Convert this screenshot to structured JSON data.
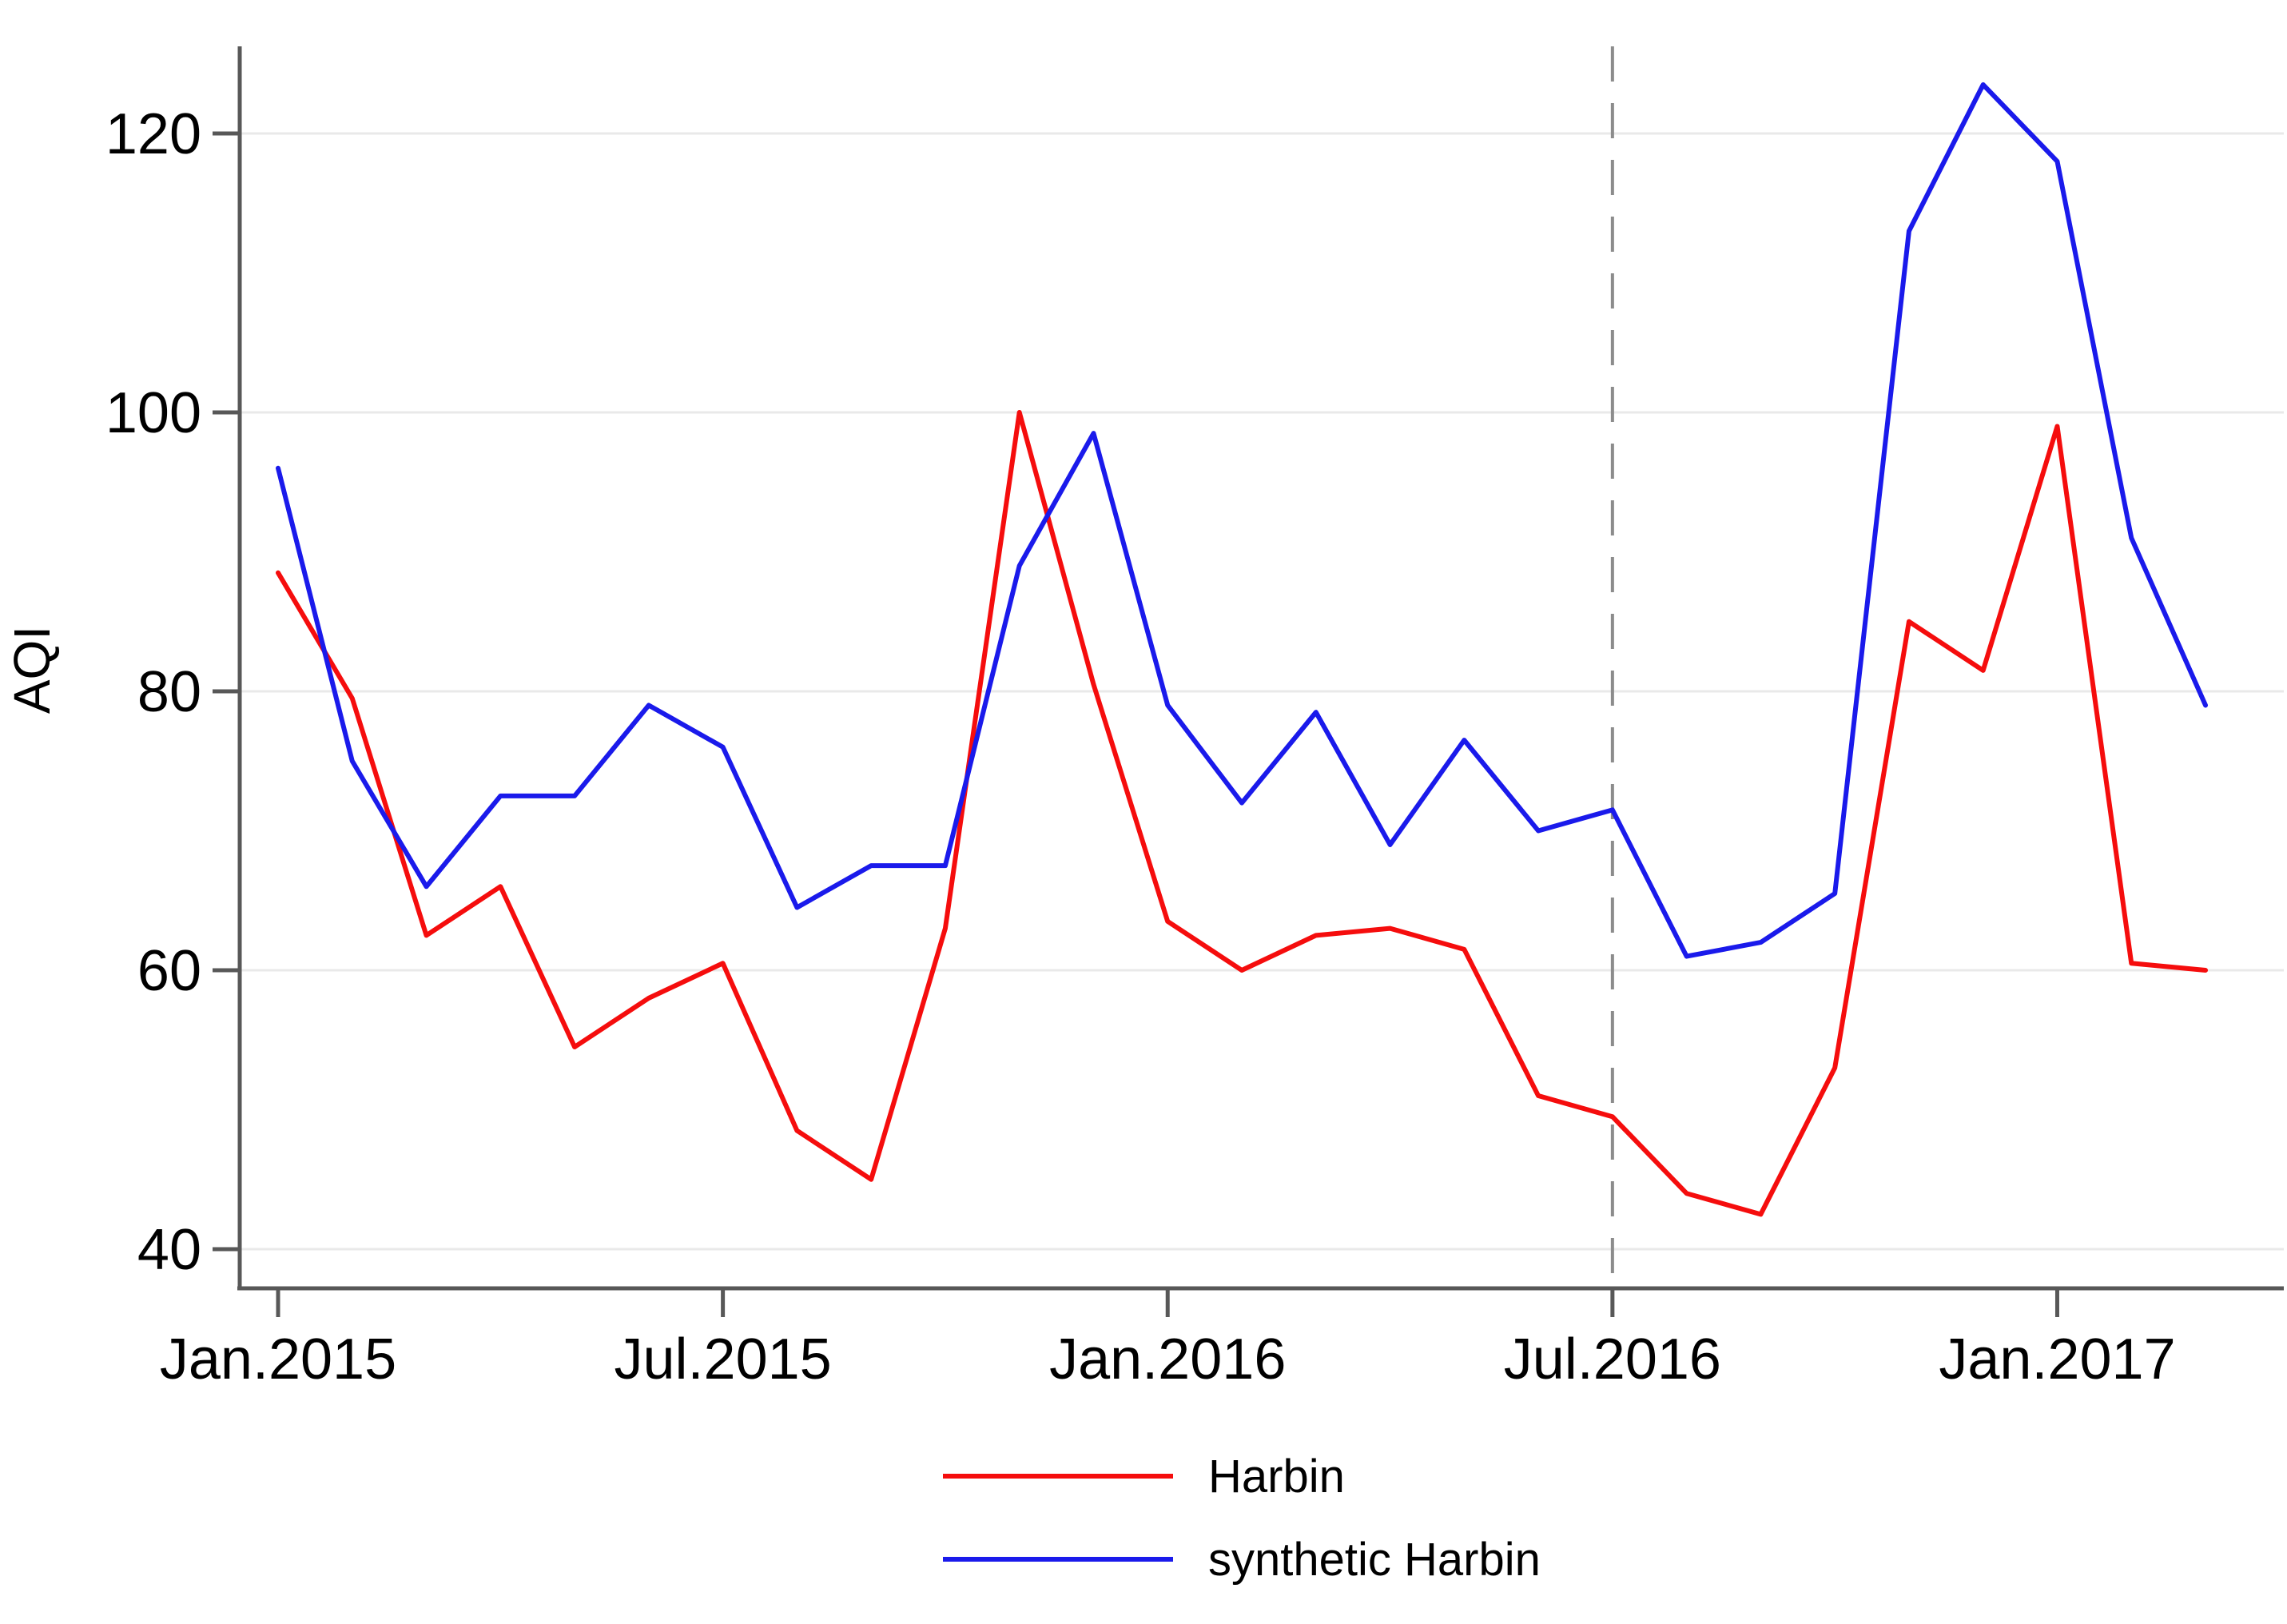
{
  "figure": {
    "kind": "statistical line chart",
    "background": "#ffffff"
  },
  "chart_data": {
    "type": "line",
    "ylabel": "AQI",
    "x_frequency": "monthly",
    "x_start": "Jan.2015",
    "x_end": "Mar.2017",
    "x": [
      "Jan.2015",
      "Feb.2015",
      "Mar.2015",
      "Apr.2015",
      "May.2015",
      "Jun.2015",
      "Jul.2015",
      "Aug.2015",
      "Sep.2015",
      "Oct.2015",
      "Nov.2015",
      "Dec.2015",
      "Jan.2016",
      "Feb.2016",
      "Mar.2016",
      "Apr.2016",
      "May.2016",
      "Jun.2016",
      "Jul.2016",
      "Aug.2016",
      "Sep.2016",
      "Oct.2016",
      "Nov.2016",
      "Dec.2016",
      "Jan.2017",
      "Feb.2017",
      "Mar.2017"
    ],
    "x_ticks": [
      {
        "label": "Jan.2015",
        "month_index": 0
      },
      {
        "label": "Jul.2015",
        "month_index": 6
      },
      {
        "label": "Jan.2016",
        "month_index": 12
      },
      {
        "label": "Jul.2016",
        "month_index": 18
      },
      {
        "label": "Jan.2017",
        "month_index": 24
      }
    ],
    "y_ticks": [
      40,
      60,
      80,
      100,
      120
    ],
    "ylim": [
      37.3,
      126.2
    ],
    "grid": "horizontal light gray lines at each y tick",
    "reference_line": {
      "style": "dashed vertical",
      "color": "#8c8c8c",
      "at_label": "Jul.2016",
      "month_index": 18
    },
    "legend_position": "bottom-center",
    "series": [
      {
        "name": "Harbin",
        "color": "#f50d0d",
        "values": [
          88.5,
          79.5,
          62.5,
          66,
          54.5,
          58,
          60.5,
          48.5,
          45,
          63,
          100,
          80.5,
          63.5,
          60,
          62.5,
          63,
          61.5,
          51,
          49.5,
          44,
          42.5,
          53,
          85,
          81.5,
          99,
          60.5,
          60
        ]
      },
      {
        "name": "synthetic Harbin",
        "color": "#1a1aeb",
        "values": [
          96,
          75,
          66,
          72.5,
          72.5,
          79,
          76,
          64.5,
          67.5,
          67.5,
          89,
          98.5,
          79,
          72,
          78.5,
          69,
          76.5,
          70,
          71.5,
          61,
          62,
          65.5,
          113,
          123.5,
          118,
          91,
          79
        ]
      }
    ]
  },
  "colors": {
    "axis": "#585858",
    "gridline": "#e9e9e9",
    "tick_text": "#000000",
    "dashed_reference": "#8c8c8c"
  }
}
